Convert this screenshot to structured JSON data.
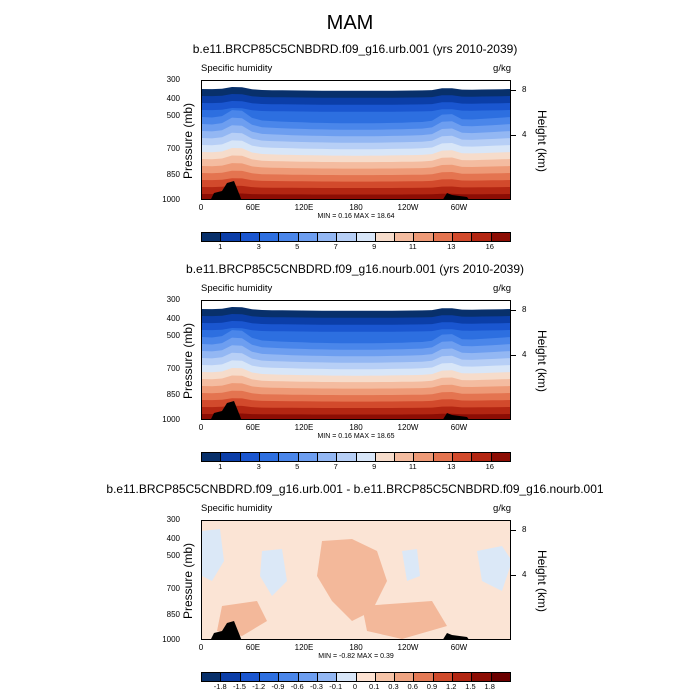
{
  "title": "MAM",
  "panels": [
    {
      "title": "b.e11.BRCP85C5CNBDRD.f09_g16.urb.001 (yrs 2010-2039)",
      "left_label": "Specific humidity",
      "right_label": "g/kg",
      "minmax": "MIN =  0.16  MAX =  18.64",
      "colorbar_labels": [
        "1",
        "3",
        "5",
        "7",
        "9",
        "11",
        "13",
        "16"
      ],
      "colors": [
        "#08306b",
        "#0b3ea8",
        "#1a56d0",
        "#2d6fe0",
        "#4a86ea",
        "#6d9ef0",
        "#93b7f3",
        "#b7cff6",
        "#d8e6f8",
        "#f6dccb",
        "#f4bca0",
        "#ee9a77",
        "#e47450",
        "#d24a2c",
        "#b32612",
        "#8c0d04"
      ]
    },
    {
      "title": "b.e11.BRCP85C5CNBDRD.f09_g16.nourb.001 (yrs 2010-2039)",
      "left_label": "Specific humidity",
      "right_label": "g/kg",
      "minmax": "MIN =  0.16  MAX =  18.65",
      "colorbar_labels": [
        "1",
        "3",
        "5",
        "7",
        "9",
        "11",
        "13",
        "16"
      ],
      "colors": [
        "#08306b",
        "#0b3ea8",
        "#1a56d0",
        "#2d6fe0",
        "#4a86ea",
        "#6d9ef0",
        "#93b7f3",
        "#b7cff6",
        "#d8e6f8",
        "#f6dccb",
        "#f4bca0",
        "#ee9a77",
        "#e47450",
        "#d24a2c",
        "#b32612",
        "#8c0d04"
      ]
    },
    {
      "title": "b.e11.BRCP85C5CNBDRD.f09_g16.urb.001 - b.e11.BRCP85C5CNBDRD.f09_g16.nourb.001",
      "left_label": "Specific humidity",
      "right_label": "g/kg",
      "minmax": "MIN = -0.82  MAX =  0.39",
      "colorbar_labels": [
        "-1.8",
        "-1.5",
        "-1.2",
        "-0.9",
        "-0.6",
        "-0.3",
        "-0.1",
        "0",
        "0.1",
        "0.3",
        "0.6",
        "0.9",
        "1.2",
        "1.5",
        "1.8"
      ],
      "colors": [
        "#08306b",
        "#0b3ea8",
        "#1a56d0",
        "#2d6fe0",
        "#4a86ea",
        "#6d9ef0",
        "#93b7f3",
        "#d8e6f8",
        "#fde2d2",
        "#f6c4a8",
        "#efa482",
        "#e47a56",
        "#d04b2c",
        "#b22612",
        "#8c0d04",
        "#6b0000"
      ]
    }
  ],
  "chart_data": {
    "type": "heatmap",
    "description_axes": "longitude-pressure cross sections",
    "y_axis": {
      "title": "Pressure (mb)",
      "ticks": [
        "300",
        "400",
        "500",
        "700",
        "850",
        "1000"
      ],
      "range": [
        300,
        1000
      ]
    },
    "y2_axis": {
      "title": "Height (km)",
      "ticks": [
        "8",
        "4"
      ]
    },
    "x_axis": {
      "ticks": [
        "0",
        "60E",
        "120E",
        "180",
        "120W",
        "60W"
      ],
      "range": [
        0,
        360
      ]
    }
  }
}
